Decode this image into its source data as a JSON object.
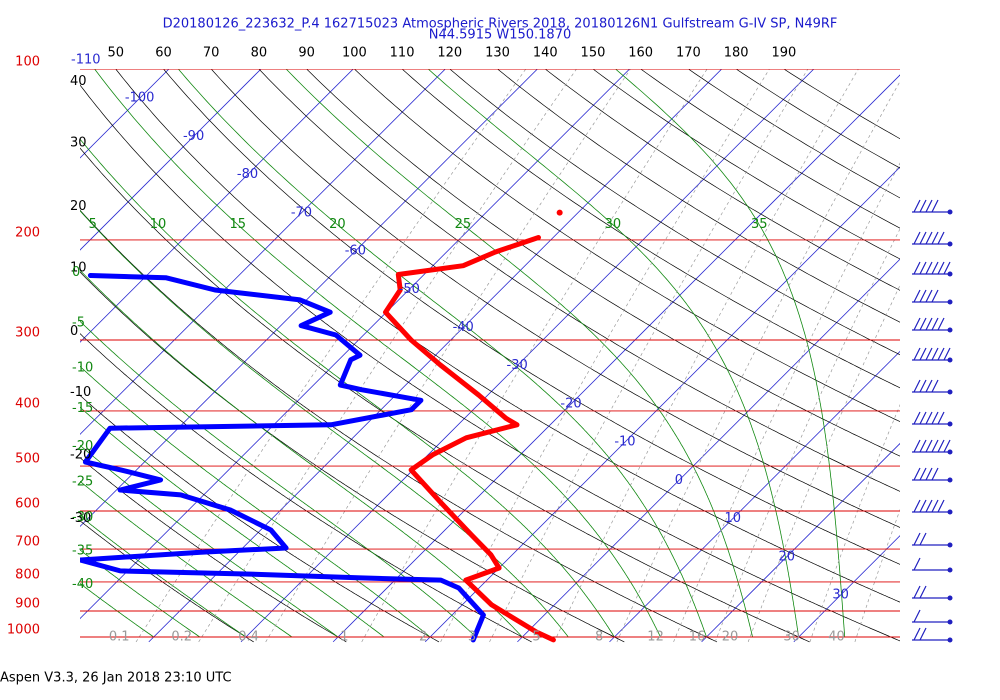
{
  "title": "D20180126_223632_P.4 162715023 Atmospheric Rivers 2018, 20180126N1 Gulfstream G-IV SP, N49RF",
  "subtitle": "N44.5915 W150.1870",
  "footer": "Aspen V3.3, 26 Jan 2018  23:10 UTC",
  "chart_data": {
    "type": "skew-t",
    "ylog": true,
    "ylim": [
      1000,
      100
    ],
    "xlim": [
      -48,
      41
    ],
    "yticks": [
      100,
      200,
      300,
      400,
      500,
      600,
      700,
      800,
      900,
      1000
    ],
    "isotherms": [
      -110,
      -100,
      -90,
      -80,
      -70,
      -60,
      -50,
      -40,
      -30,
      -20,
      -10,
      0,
      10,
      20,
      30
    ],
    "dry_adiabats_top": [
      50,
      60,
      70,
      80,
      90,
      100,
      110,
      120,
      130,
      140,
      150,
      160,
      170,
      180,
      190
    ],
    "dry_adiabats_left": [
      40,
      30,
      20,
      10,
      0,
      -10,
      -20,
      -30
    ],
    "moist_adiabats_top": [
      5,
      10,
      15,
      20,
      25,
      30,
      35
    ],
    "moist_adiabats_left": [
      0,
      -5,
      -10,
      -15,
      -20,
      -25,
      -30,
      -35,
      -40
    ],
    "mixing_ratios": [
      0.1,
      0.2,
      0.4,
      1,
      2,
      3,
      5,
      8,
      12,
      16,
      20,
      30,
      40
    ],
    "series": [
      {
        "color": "#ff0000",
        "pressure": [
          198,
          210,
          222,
          230,
          245,
          268,
          300,
          332,
          375,
          412,
          423,
          446,
          478,
          508,
          579,
          661,
          717,
          756,
          794,
          878,
          980,
          1012
        ],
        "temperature": [
          -41.6,
          -44.7,
          -46.7,
          -52.8,
          -50.9,
          -50.1,
          -44.3,
          -38.4,
          -31.0,
          -25.5,
          -23.6,
          -27.7,
          -29.5,
          -30.2,
          -23.5,
          -16.6,
          -12.3,
          -10.0,
          -12.3,
          -6.8,
          1.0,
          3.7
        ]
      },
      {
        "color": "#0000ff",
        "pressure": [
          1012,
          915,
          820,
          794,
          787,
          775,
          765,
          732,
          709,
          697,
          648,
          598,
          562,
          551,
          529,
          508,
          492,
          429,
          423,
          398,
          383,
          367,
          360,
          325,
          319,
          294,
          283,
          268,
          255,
          245,
          233,
          231
        ],
        "temperature": [
          -5.0,
          -6.6,
          -12.2,
          -15.0,
          -23.9,
          -36.3,
          -50.8,
          -56.3,
          -44.1,
          -35.3,
          -38.9,
          -45.4,
          -52.5,
          -59.6,
          -56.3,
          -61.7,
          -66.4,
          -67.4,
          -43.8,
          -36.7,
          -36.7,
          -44.3,
          -47.1,
          -48.7,
          -48.2,
          -53.0,
          -57.8,
          -56.1,
          -60.7,
          -71.0,
          -77.7,
          -86.1
        ]
      },
      {
        "color": "#ff0000",
        "marker": "dot",
        "pressure": [
          179
        ],
        "temperature": [
          -42.0
        ]
      }
    ]
  }
}
